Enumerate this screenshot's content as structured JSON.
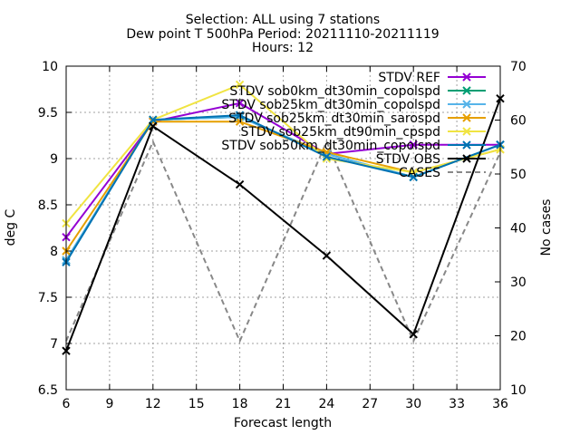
{
  "chart_data": {
    "type": "line",
    "title_lines": [
      "Selection: ALL using      7 stations",
      "Dew point T 500hPa   Period:  20211110-20211119",
      "Hours: 12"
    ],
    "xlabel": "Forecast length",
    "ylabel": "deg C",
    "y2label": "No cases",
    "xlim": [
      6,
      36
    ],
    "ylim": [
      6.5,
      10
    ],
    "y2lim": [
      10,
      70
    ],
    "x_ticks": [
      "6",
      "9",
      "12",
      "15",
      "18",
      "21",
      "24",
      "27",
      "30",
      "33",
      "36"
    ],
    "y_ticks": [
      "6.5",
      "7",
      "7.5",
      "8",
      "8.5",
      "9",
      "9.5",
      "10"
    ],
    "y2_ticks": [
      "10",
      "20",
      "30",
      "40",
      "50",
      "60",
      "70"
    ],
    "grid": true,
    "legend_position": "top-right",
    "x": [
      6,
      12,
      18,
      24,
      30,
      36
    ],
    "series": [
      {
        "name": "STDV REF",
        "color": "#9400d3",
        "marker": "x",
        "values": [
          8.15,
          9.4,
          9.6,
          9.05,
          9.15,
          9.15
        ]
      },
      {
        "name": "STDV sob0km_dt30min_copolspd",
        "color": "#009e73",
        "marker": "x",
        "values": [
          7.9,
          9.42,
          9.45,
          9.05,
          8.8,
          9.15
        ]
      },
      {
        "name": "STDV sob25km_dt30min_copolspd",
        "color": "#56b4e9",
        "marker": "x",
        "values": [
          7.9,
          9.42,
          9.45,
          9.05,
          8.8,
          9.15
        ]
      },
      {
        "name": "STDV sob25km_dt30min_sarospd",
        "color": "#e69f00",
        "marker": "x",
        "values": [
          8.0,
          9.4,
          9.4,
          9.07,
          8.85,
          9.1
        ]
      },
      {
        "name": "STDV sob25km_dt90min_cpspd",
        "color": "#f0e442",
        "marker": "x",
        "values": [
          8.3,
          9.42,
          9.8,
          9.0,
          8.85,
          9.1
        ]
      },
      {
        "name": "STDV sob50km_dt30min_copolspd",
        "color": "#0072b2",
        "marker": "x",
        "values": [
          7.88,
          9.42,
          9.47,
          9.02,
          8.8,
          9.15
        ]
      },
      {
        "name": "STDV OBS",
        "color": "#000000",
        "marker": "x",
        "values": [
          6.92,
          9.35,
          8.72,
          7.95,
          7.1,
          9.65
        ]
      }
    ],
    "cases": {
      "name": "CASES",
      "color": "#888888",
      "axis": "y2",
      "x": [
        6,
        12,
        18,
        24,
        30,
        36
      ],
      "values": [
        19,
        56,
        19,
        56,
        19,
        54
      ]
    }
  }
}
